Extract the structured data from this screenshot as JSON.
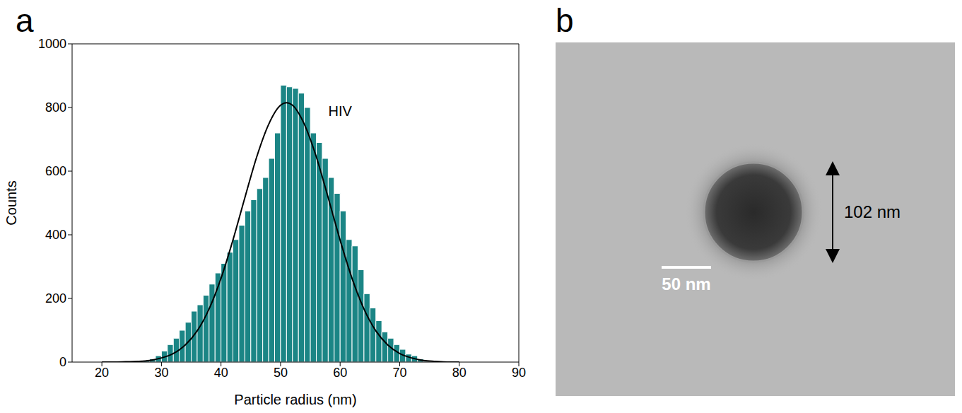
{
  "chart_data": {
    "type": "histogram",
    "panel_label": "a",
    "x_label": "Particle radius (nm)",
    "y_label": "Counts",
    "annotations": [
      "HIV"
    ],
    "bins": [
      26,
      27,
      28,
      29,
      30,
      31,
      32,
      33,
      34,
      35,
      36,
      37,
      38,
      39,
      40,
      41,
      42,
      43,
      44,
      45,
      46,
      47,
      48,
      49,
      50,
      51,
      52,
      53,
      54,
      55,
      56,
      57,
      58,
      59,
      60,
      61,
      62,
      63,
      64,
      65,
      66,
      67,
      68,
      69,
      70,
      71,
      72,
      73,
      74,
      75
    ],
    "counts": [
      2,
      5,
      10,
      20,
      35,
      55,
      75,
      100,
      125,
      160,
      180,
      210,
      245,
      280,
      310,
      345,
      385,
      430,
      475,
      510,
      545,
      580,
      640,
      720,
      870,
      865,
      860,
      845,
      800,
      720,
      690,
      640,
      580,
      530,
      475,
      385,
      365,
      290,
      215,
      170,
      130,
      95,
      75,
      55,
      40,
      25,
      20,
      10,
      2
    ],
    "color": "#1b8585",
    "fit": {
      "color": "#000000",
      "x": [
        20,
        22,
        24,
        26,
        28,
        30,
        32,
        34,
        36,
        38,
        40,
        42,
        44,
        46,
        48,
        50,
        51,
        52,
        54,
        56,
        58,
        60,
        62,
        64,
        66,
        68,
        70,
        72,
        74,
        76,
        78,
        80
      ],
      "y": [
        0,
        0,
        1,
        2,
        5,
        13,
        27,
        54,
        98,
        167,
        263,
        383,
        516,
        645,
        747,
        807,
        815,
        807,
        747,
        645,
        516,
        383,
        263,
        167,
        98,
        54,
        27,
        13,
        5,
        2,
        0,
        0
      ]
    },
    "xlim": [
      15,
      90
    ],
    "xticks": [
      20,
      30,
      40,
      50,
      60,
      70,
      80,
      90
    ],
    "ylim": [
      0,
      1000
    ],
    "yticks": [
      0,
      200,
      400,
      600,
      800,
      1000
    ],
    "grid": false
  },
  "image": {
    "panel_label": "b",
    "measurement": "102 nm",
    "scale_bar": "50 nm"
  }
}
